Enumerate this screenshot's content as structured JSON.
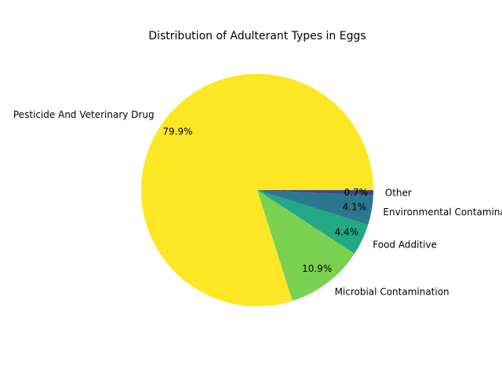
{
  "chart_data": {
    "type": "pie",
    "title": "Distribution of Adulterant Types in Eggs",
    "slices": [
      {
        "label": "Pesticide And Veterinary Drug",
        "value": 79.9,
        "pct_label": "79.9%",
        "color": "#fde725"
      },
      {
        "label": "Microbial Contamination",
        "value": 10.9,
        "pct_label": "10.9%",
        "color": "#7ad151"
      },
      {
        "label": "Food Additive",
        "value": 4.4,
        "pct_label": "4.4%",
        "color": "#22a884"
      },
      {
        "label": "Environmental Contaminant",
        "value": 4.1,
        "pct_label": "4.1%",
        "color": "#2a788e"
      },
      {
        "label": "Other",
        "value": 0.7,
        "pct_label": "0.7%",
        "color": "#414487"
      }
    ],
    "start_angle": 0,
    "direction": "counterclockwise"
  }
}
